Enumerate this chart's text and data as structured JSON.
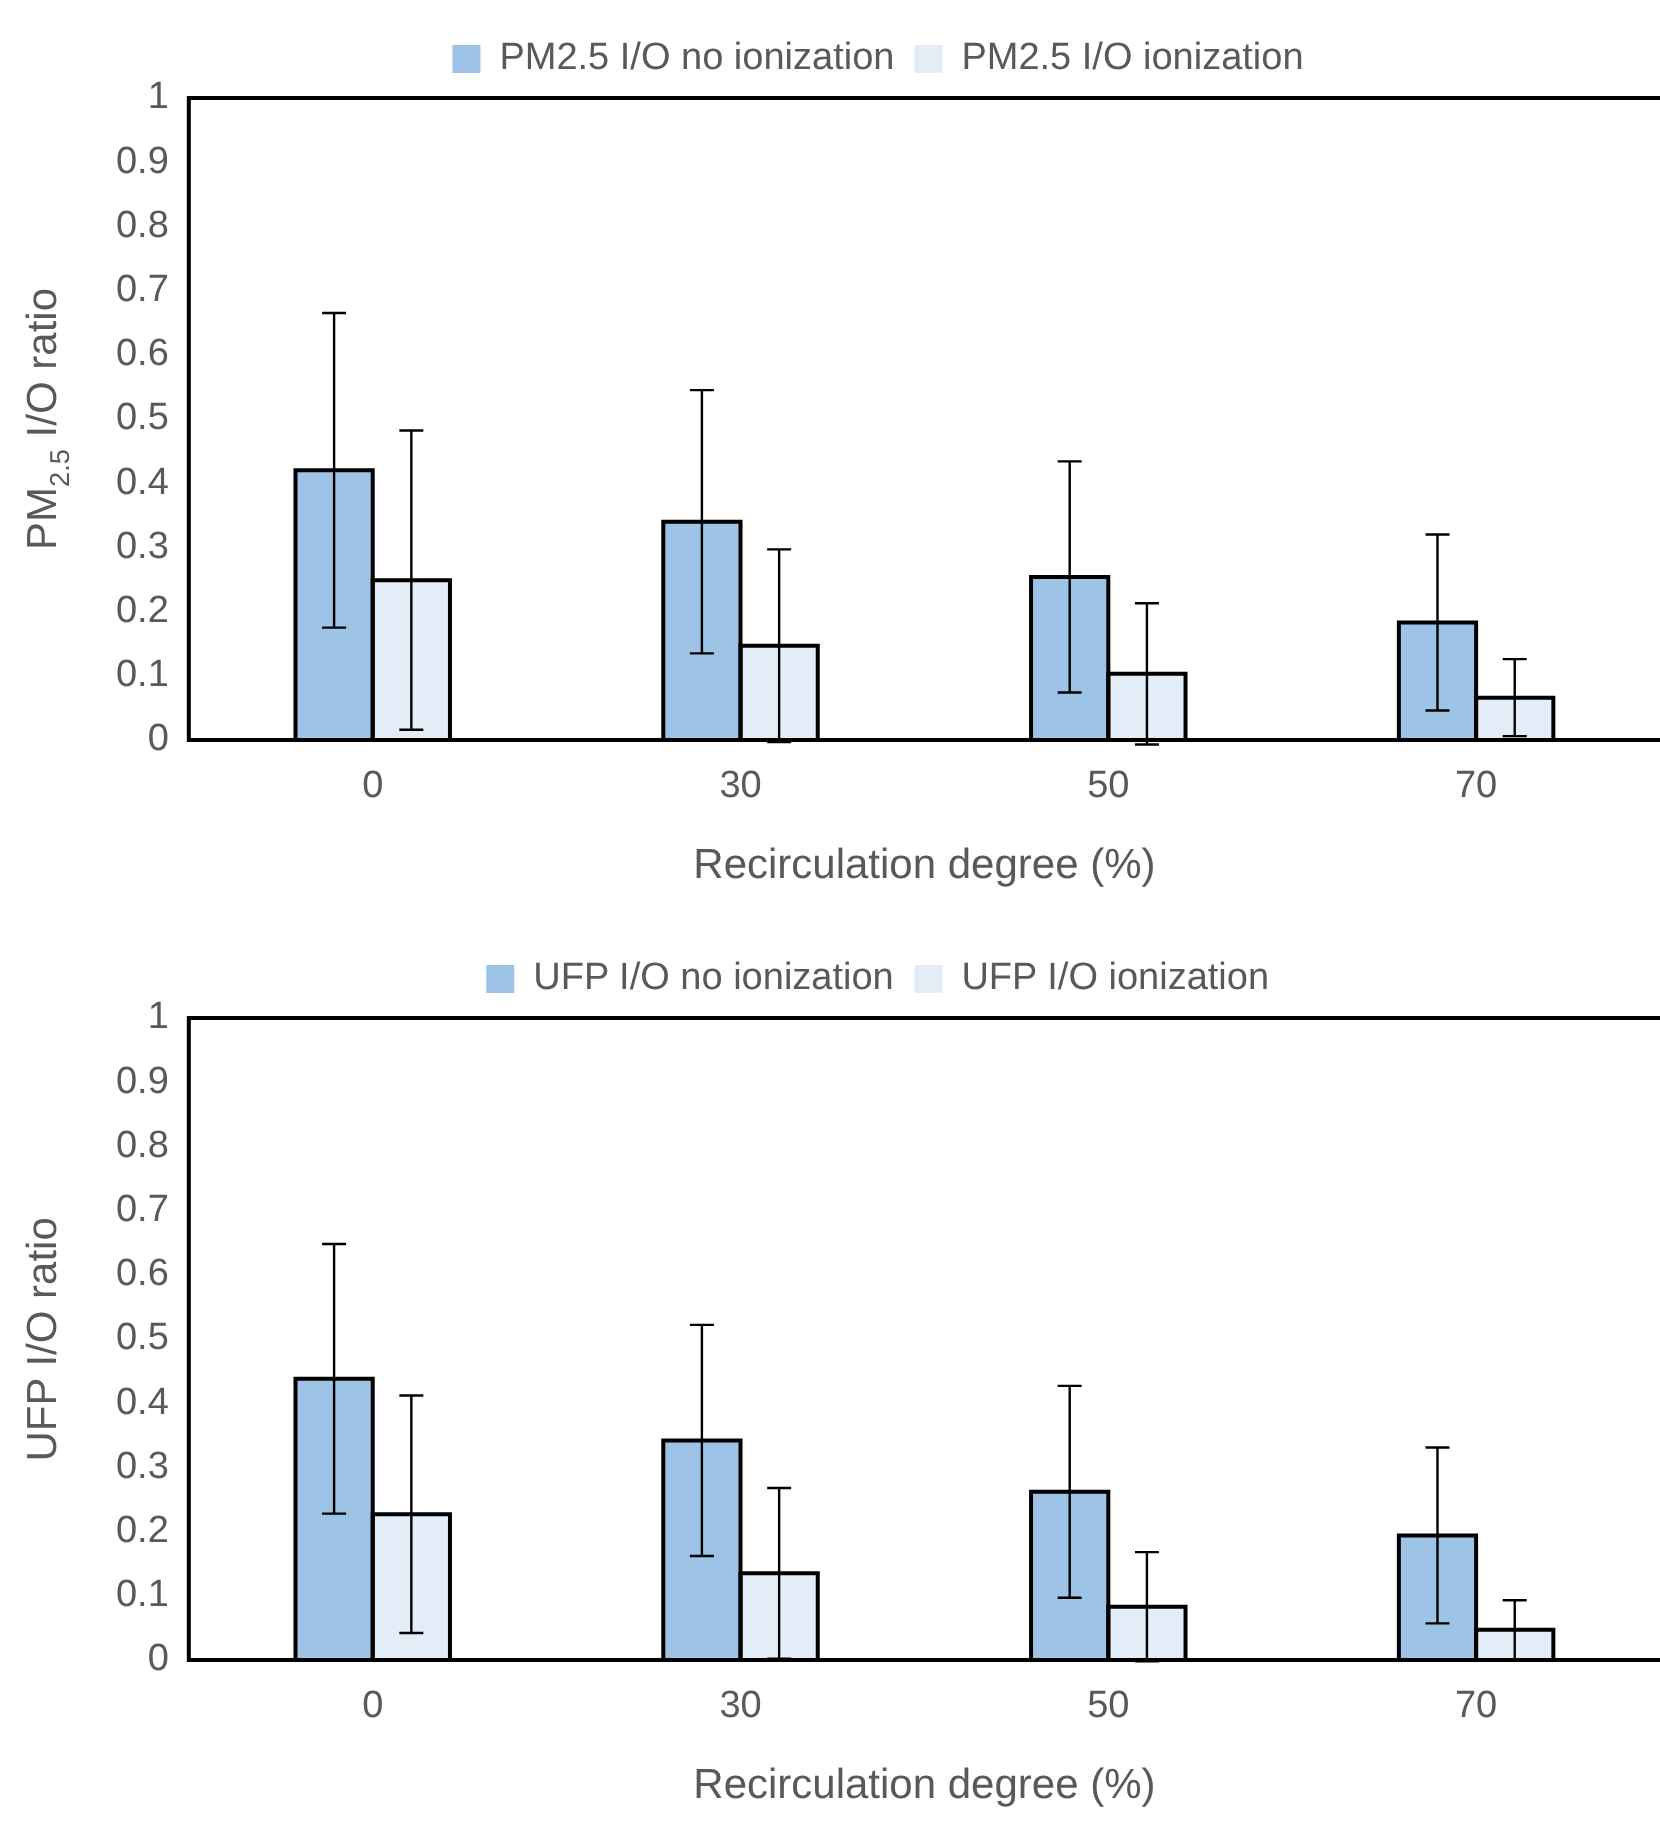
{
  "chart_data": [
    {
      "type": "bar",
      "xlabel": "Recirculation degree (%)",
      "ylabel": "PM$_{2.5}$ I/O ratio",
      "categories": [
        "0",
        "30",
        "50",
        "70"
      ],
      "series": [
        {
          "name": "PM2.5 I/O no ionization",
          "color": "#9dc3e6",
          "values": [
            0.42,
            0.34,
            0.254,
            0.183
          ],
          "errors": [
            0.245,
            0.205,
            0.18,
            0.137
          ]
        },
        {
          "name": "PM2.5 I/O ionization",
          "color": "#e2edf8",
          "values": [
            0.249,
            0.147,
            0.103,
            0.066
          ],
          "errors": [
            0.233,
            0.15,
            0.11,
            0.06
          ]
        }
      ],
      "ylim": [
        0,
        1
      ],
      "yticks": [
        0,
        0.1,
        0.2,
        0.3,
        0.4,
        0.5,
        0.6,
        0.7,
        0.8,
        0.9,
        1
      ],
      "grid": false,
      "legend": "top"
    },
    {
      "type": "bar",
      "xlabel": "Recirculation degree (%)",
      "ylabel": "UFP I/O ratio",
      "categories": [
        "0",
        "30",
        "50",
        "70"
      ],
      "series": [
        {
          "name": "UFP I/O no ionization",
          "color": "#9dc3e6",
          "values": [
            0.438,
            0.342,
            0.262,
            0.194
          ],
          "errors": [
            0.21,
            0.18,
            0.165,
            0.137
          ]
        },
        {
          "name": "UFP I/O ionization",
          "color": "#e2edf8",
          "values": [
            0.227,
            0.135,
            0.083,
            0.047
          ],
          "errors": [
            0.185,
            0.133,
            0.085,
            0.046
          ]
        }
      ],
      "ylim": [
        0,
        1
      ],
      "yticks": [
        0,
        0.1,
        0.2,
        0.3,
        0.4,
        0.5,
        0.6,
        0.7,
        0.8,
        0.9,
        1
      ],
      "grid": false,
      "legend": "top"
    }
  ]
}
